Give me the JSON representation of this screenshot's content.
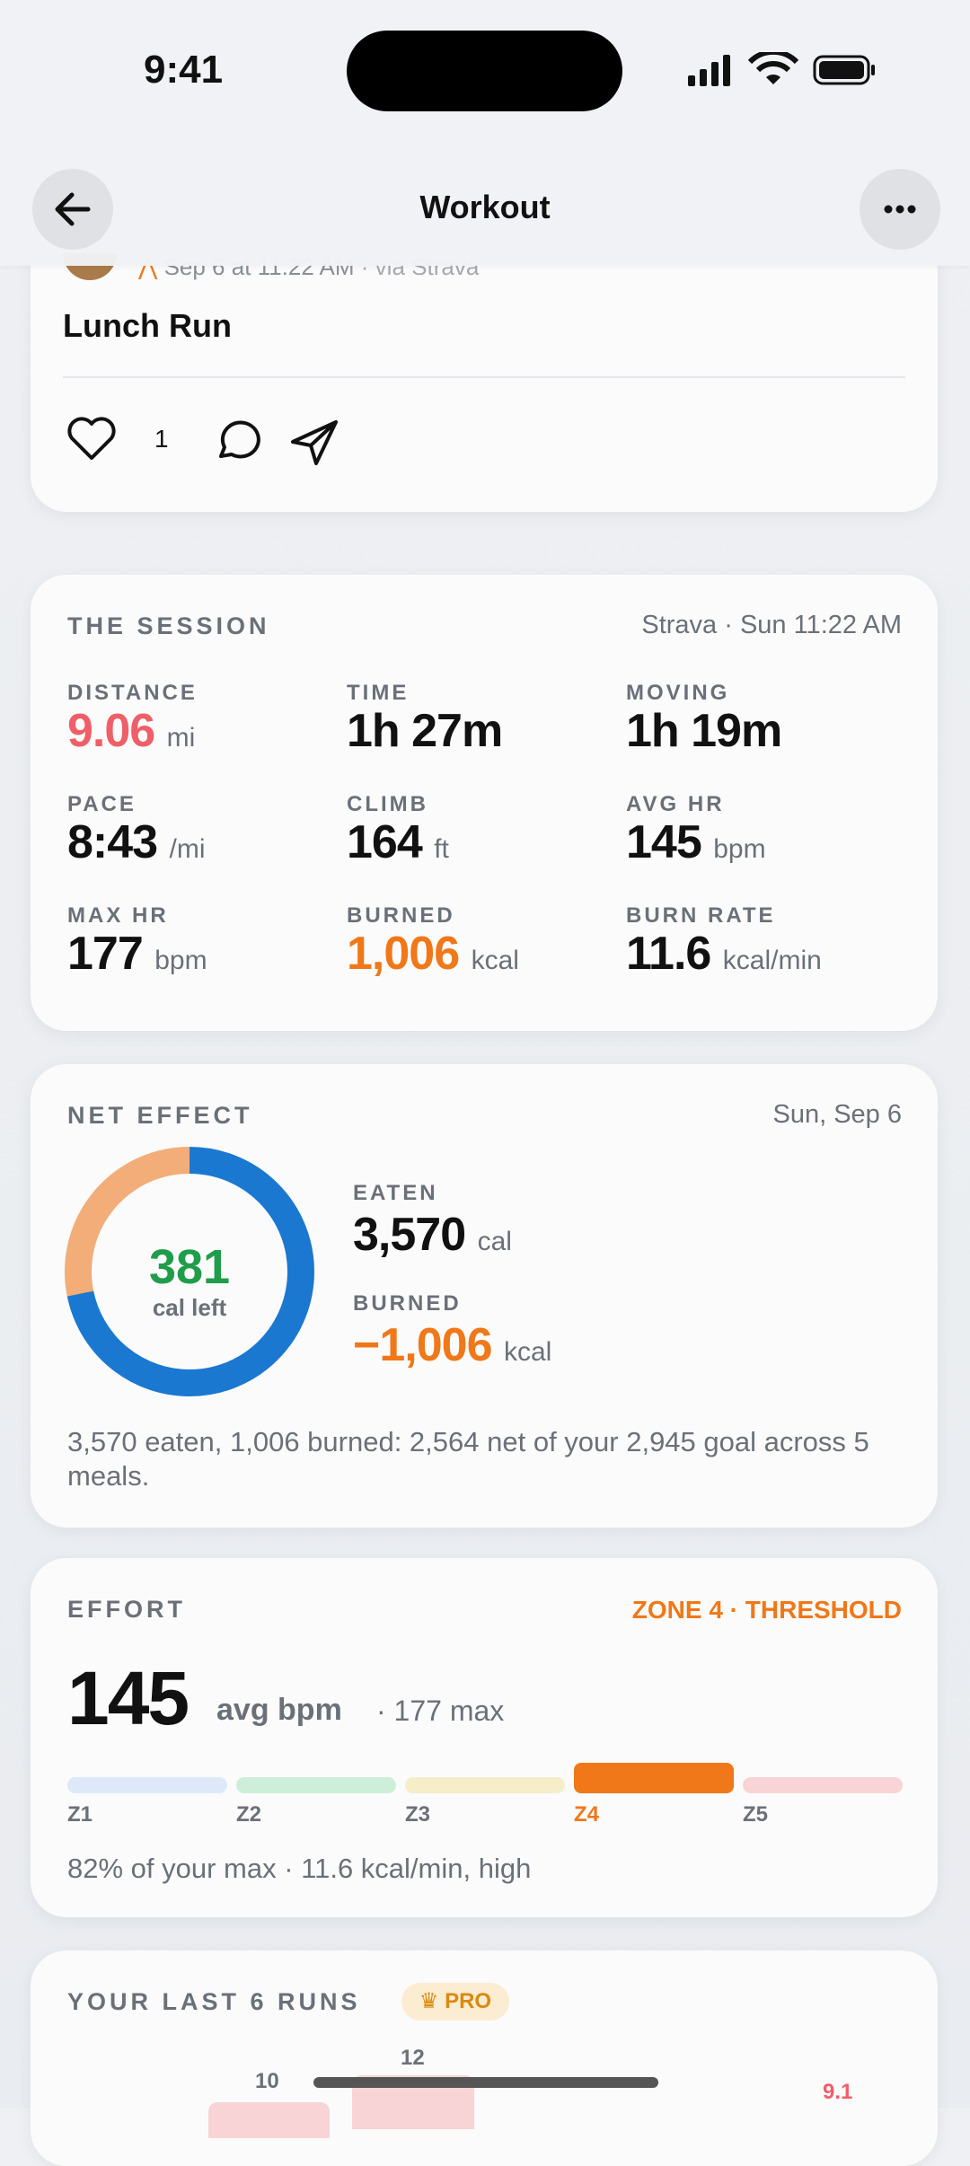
{
  "status_bar": {
    "time": "9:41"
  },
  "header": {
    "title": "Workout"
  },
  "post": {
    "meta": "Sep 6 at 11:22 AM",
    "source": "· via Strava",
    "title": "Lunch Run",
    "likes": "1"
  },
  "session": {
    "title": "THE SESSION",
    "meta": "Strava · Sun 11:22 AM",
    "stats": [
      {
        "label": "DISTANCE",
        "value": "9.06",
        "unit": "mi",
        "color": "#ef5f68"
      },
      {
        "label": "TIME",
        "value": "1h 27m",
        "unit": "",
        "color": "#111111"
      },
      {
        "label": "MOVING",
        "value": "1h 19m",
        "unit": "",
        "color": "#111111"
      },
      {
        "label": "PACE",
        "value": "8:43",
        "unit": "/mi",
        "color": "#111111"
      },
      {
        "label": "CLIMB",
        "value": "164",
        "unit": "ft",
        "color": "#111111"
      },
      {
        "label": "AVG HR",
        "value": "145",
        "unit": "bpm",
        "color": "#111111"
      },
      {
        "label": "MAX HR",
        "value": "177",
        "unit": "bpm",
        "color": "#111111"
      },
      {
        "label": "BURNED",
        "value": "1,006",
        "unit": "kcal",
        "color": "#f07818"
      },
      {
        "label": "BURN RATE",
        "value": "11.6",
        "unit": "kcal/min",
        "color": "#111111"
      }
    ]
  },
  "net_effect": {
    "title": "NET EFFECT",
    "date": "Sun, Sep 6",
    "remaining": "381",
    "remaining_label": "cal left",
    "eaten": {
      "label": "EATEN",
      "value": "3,570",
      "unit": "cal"
    },
    "burned": {
      "label": "BURNED",
      "value": "−1,006",
      "unit": "kcal"
    },
    "summary": "3,570 eaten, 1,006 burned: 2,564 net of your 2,945 goal across 5 meals."
  },
  "effort": {
    "title": "EFFORT",
    "zone": "ZONE 4 · THRESHOLD",
    "avg": "145",
    "avg_unit": "avg bpm",
    "max": "· 177 max",
    "zones": [
      "Z1",
      "Z2",
      "Z3",
      "Z4",
      "Z5"
    ],
    "summary": "82% of your max · 11.6 kcal/min, high"
  },
  "last_runs": {
    "title": "YOUR LAST 6 RUNS",
    "badge": "PRO",
    "labels": [
      "10",
      "12",
      "9.1"
    ]
  }
}
